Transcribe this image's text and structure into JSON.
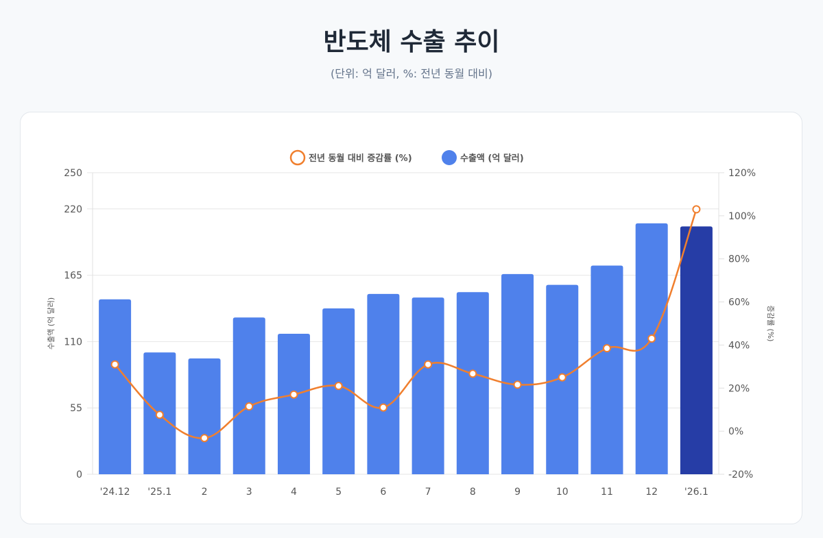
{
  "header": {
    "title": "반도체 수출 추이",
    "subtitle": "(단위: 억 달러, %: 전년 동월 대비)"
  },
  "chart_data": {
    "type": "bar",
    "categories": [
      "'24.12",
      "'25.1",
      "2",
      "3",
      "4",
      "5",
      "6",
      "7",
      "8",
      "9",
      "10",
      "11",
      "12",
      "'26.1"
    ],
    "series": [
      {
        "name": "수출액 (억 달러)",
        "type": "bar",
        "axis": "left",
        "color": "#4f81eb",
        "highlight_color": "#263da6",
        "values": [
          145,
          101,
          96,
          130,
          116.5,
          137.5,
          149.5,
          146.5,
          151,
          166,
          157,
          173,
          208,
          205.5
        ]
      },
      {
        "name": "전년 동월 대비 증감률 (%)",
        "type": "line",
        "axis": "right",
        "color": "#f07f2e",
        "values": [
          31,
          7.6,
          -3.2,
          11.5,
          17,
          21,
          11,
          31,
          26.7,
          21.6,
          25,
          38.5,
          43,
          103
        ]
      }
    ],
    "left_axis": {
      "label": "수출액 (억 달러)",
      "ylim": [
        0,
        250
      ],
      "ticks": [
        "0",
        "55",
        "110",
        "165",
        "220",
        "250"
      ]
    },
    "right_axis": {
      "label": "증감률 (%)",
      "ylim": [
        -20,
        120
      ],
      "ticks": [
        "-20%",
        "0%",
        "20%",
        "40%",
        "60%",
        "80%",
        "100%",
        "120%"
      ]
    },
    "legend": {
      "position": "top",
      "items": [
        "전년 동월 대비 증감률 (%)",
        "수출액 (억 달러)"
      ]
    },
    "grid": true
  }
}
